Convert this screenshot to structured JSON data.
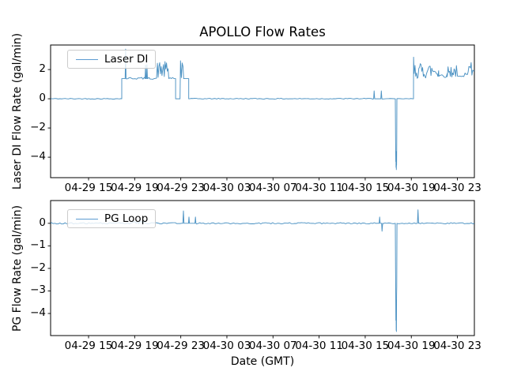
{
  "figure": {
    "background": "#ffffff",
    "line_color": "#1f77b4",
    "legend_sample_color": "#5b9bd1",
    "spine_color": "#000000",
    "text_color": "#000000"
  },
  "chart_data": [
    {
      "type": "line",
      "title": "APOLLO Flow Rates",
      "ylabel": "Laser DI Flow Rate (gal/min)",
      "legend": {
        "label": "Laser DI",
        "loc": "upper left"
      },
      "grid": false,
      "ylim": [
        -5.4,
        3.68
      ],
      "yticks": {
        "values": [
          2,
          0,
          -2,
          -4
        ],
        "labels": [
          "2",
          "0",
          "−2",
          "−4"
        ]
      },
      "xticks": {
        "first_frac": 0.0896,
        "spacing_frac": 0.1088,
        "labels": [
          "04-29 15",
          "04-29 19",
          "04-29 23",
          "04-30 03",
          "04-30 07",
          "04-30 11",
          "04-30 15",
          "04-30 19",
          "04-30 23"
        ]
      },
      "series": {
        "name": "Laser DI",
        "segments": [
          {
            "t": "line",
            "pts": [
              [
                0,
                0
              ]
            ]
          },
          {
            "t": "noise",
            "x0": 0.002,
            "x1": 0.167,
            "lo": -0.025,
            "hi": 0.03,
            "step": 0.004
          },
          {
            "t": "line",
            "pts": [
              [
                0.168,
                0
              ],
              [
                0.168,
                1.38
              ],
              [
                0.176,
                1.38
              ]
            ]
          },
          {
            "t": "spike",
            "x": 0.177,
            "peak": 3.4,
            "base": 1.38,
            "w": 0.001
          },
          {
            "t": "noise",
            "x0": 0.179,
            "x1": 0.222,
            "lo": 1.33,
            "hi": 1.47,
            "step": 0.003
          },
          {
            "t": "spike",
            "x": 0.224,
            "peak": 2.3,
            "base": 1.38,
            "w": 0.001
          },
          {
            "t": "spike",
            "x": 0.2275,
            "peak": 2.32,
            "base": 1.38,
            "w": 0.001
          },
          {
            "t": "noise",
            "x0": 0.229,
            "x1": 0.251,
            "lo": 1.33,
            "hi": 1.46,
            "step": 0.003
          },
          {
            "t": "noise",
            "x0": 0.252,
            "x1": 0.278,
            "lo": 1.38,
            "hi": 2.55,
            "step": 0.0018
          },
          {
            "t": "noise",
            "x0": 0.279,
            "x1": 0.294,
            "lo": 1.33,
            "hi": 1.5,
            "step": 0.003
          },
          {
            "t": "line",
            "pts": [
              [
                0.295,
                1.38
              ],
              [
                0.295,
                0
              ],
              [
                0.3055,
                0
              ],
              [
                0.3065,
                2.6
              ],
              [
                0.3085,
                1.45
              ],
              [
                0.3105,
                2.45
              ],
              [
                0.3125,
                2.2
              ],
              [
                0.314,
                1.38
              ],
              [
                0.326,
                1.38
              ],
              [
                0.326,
                0
              ]
            ]
          },
          {
            "t": "noise",
            "x0": 0.328,
            "x1": 0.762,
            "lo": -0.025,
            "hi": 0.035,
            "step": 0.004
          },
          {
            "t": "spike",
            "x": 0.7635,
            "peak": 0.54,
            "base": 0,
            "w": 0.0012
          },
          {
            "t": "line",
            "pts": [
              [
                0.765,
                0
              ],
              [
                0.779,
                0
              ]
            ]
          },
          {
            "t": "spike",
            "x": 0.7805,
            "peak": 0.54,
            "base": 0,
            "w": 0.0012
          },
          {
            "t": "noise",
            "x0": 0.782,
            "x1": 0.813,
            "lo": -0.02,
            "hi": 0.02,
            "step": 0.004
          },
          {
            "t": "line",
            "pts": [
              [
                0.8135,
                0
              ],
              [
                0.814,
                -2.5
              ],
              [
                0.8145,
                -4.3
              ],
              [
                0.8149,
                -3.6
              ],
              [
                0.8152,
                -4.7
              ],
              [
                0.8155,
                -3.9
              ],
              [
                0.8158,
                -4.85
              ],
              [
                0.8162,
                -4.1
              ],
              [
                0.8165,
                -4.55
              ],
              [
                0.8168,
                -3.0
              ],
              [
                0.8172,
                0
              ]
            ]
          },
          {
            "t": "noise",
            "x0": 0.818,
            "x1": 0.8555,
            "lo": -0.02,
            "hi": 0.02,
            "step": 0.004
          },
          {
            "t": "line",
            "pts": [
              [
                0.8563,
                0
              ],
              [
                0.8565,
                2.85
              ],
              [
                0.8578,
                1.75
              ]
            ]
          },
          {
            "t": "noise",
            "x0": 0.858,
            "x1": 0.916,
            "lo": 1.38,
            "hi": 2.45,
            "step": 0.0018
          },
          {
            "t": "noise",
            "x0": 0.916,
            "x1": 0.936,
            "lo": 1.45,
            "hi": 1.75,
            "step": 0.0025
          },
          {
            "t": "noise",
            "x0": 0.936,
            "x1": 0.959,
            "lo": 1.45,
            "hi": 2.3,
            "step": 0.0018
          },
          {
            "t": "noise",
            "x0": 0.96,
            "x1": 0.977,
            "lo": 1.45,
            "hi": 1.58,
            "step": 0.003
          },
          {
            "t": "noise",
            "x0": 0.978,
            "x1": 0.998,
            "lo": 1.6,
            "hi": 2.5,
            "step": 0.0018
          },
          {
            "t": "line",
            "pts": [
              [
                1.0,
                1.9
              ]
            ]
          }
        ]
      }
    },
    {
      "type": "line",
      "ylabel": "PG Flow Rate (gal/min)",
      "xlabel": "Date (GMT)",
      "legend": {
        "label": "PG Loop",
        "loc": "upper left"
      },
      "grid": false,
      "ylim": [
        -4.98,
        1.01
      ],
      "yticks": {
        "values": [
          0,
          -1,
          -2,
          -3,
          -4
        ],
        "labels": [
          "0",
          "−1",
          "−2",
          "−3",
          "−4"
        ]
      },
      "xticks": {
        "first_frac": 0.0896,
        "spacing_frac": 0.1088,
        "labels": [
          "04-29 15",
          "04-29 19",
          "04-29 23",
          "04-30 03",
          "04-30 07",
          "04-30 11",
          "04-30 15",
          "04-30 19",
          "04-30 23"
        ]
      },
      "series": {
        "name": "PG Loop",
        "segments": [
          {
            "t": "line",
            "pts": [
              [
                0,
                0
              ]
            ]
          },
          {
            "t": "noise",
            "x0": 0.002,
            "x1": 0.19,
            "lo": -0.03,
            "hi": 0.03,
            "step": 0.004
          },
          {
            "t": "noise",
            "x0": 0.19,
            "x1": 0.225,
            "lo": -0.03,
            "hi": 0.1,
            "step": 0.003
          },
          {
            "t": "noise",
            "x0": 0.226,
            "x1": 0.311,
            "lo": -0.03,
            "hi": 0.03,
            "step": 0.004
          },
          {
            "t": "spike",
            "x": 0.3135,
            "peak": 0.55,
            "base": 0,
            "w": 0.0013
          },
          {
            "t": "line",
            "pts": [
              [
                0.315,
                0
              ],
              [
                0.3255,
                0
              ]
            ]
          },
          {
            "t": "spike",
            "x": 0.3265,
            "peak": 0.28,
            "base": 0,
            "w": 0.0012
          },
          {
            "t": "line",
            "pts": [
              [
                0.328,
                0
              ],
              [
                0.3405,
                0
              ]
            ]
          },
          {
            "t": "spike",
            "x": 0.3418,
            "peak": 0.28,
            "base": 0,
            "w": 0.0012
          },
          {
            "t": "noise",
            "x0": 0.344,
            "x1": 0.775,
            "lo": -0.03,
            "hi": 0.03,
            "step": 0.004
          },
          {
            "t": "spike",
            "x": 0.7765,
            "peak": 0.28,
            "base": 0,
            "w": 0.0012
          },
          {
            "t": "line",
            "pts": [
              [
                0.778,
                0
              ],
              [
                0.7812,
                0
              ],
              [
                0.782,
                -0.35
              ],
              [
                0.7835,
                0
              ]
            ]
          },
          {
            "t": "noise",
            "x0": 0.785,
            "x1": 0.8125,
            "lo": -0.02,
            "hi": 0.02,
            "step": 0.004
          },
          {
            "t": "line",
            "pts": [
              [
                0.8135,
                0
              ],
              [
                0.8139,
                -2.0
              ],
              [
                0.8143,
                -2.8
              ],
              [
                0.8148,
                -4.3
              ],
              [
                0.8151,
                -3.4
              ],
              [
                0.8154,
                -4.75
              ],
              [
                0.8158,
                -3.8
              ],
              [
                0.8161,
                -4.8
              ],
              [
                0.8164,
                -3.2
              ],
              [
                0.8168,
                -2.8
              ],
              [
                0.8173,
                0
              ]
            ]
          },
          {
            "t": "noise",
            "x0": 0.818,
            "x1": 0.8655,
            "lo": -0.02,
            "hi": 0.02,
            "step": 0.004
          },
          {
            "t": "spike",
            "x": 0.867,
            "peak": 0.6,
            "base": 0,
            "w": 0.0013
          },
          {
            "t": "noise",
            "x0": 0.8685,
            "x1": 0.999,
            "lo": -0.03,
            "hi": 0.03,
            "step": 0.004
          },
          {
            "t": "line",
            "pts": [
              [
                1.0,
                0
              ]
            ]
          }
        ]
      }
    }
  ]
}
